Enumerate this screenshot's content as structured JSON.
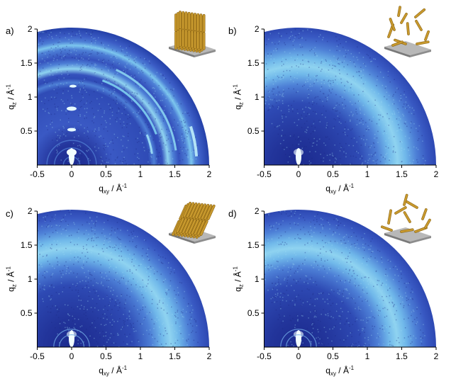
{
  "colors": {
    "background": "#ffffff",
    "map_outer": "#1b2a8e",
    "map_inner": "#3a59c4",
    "ring_mid": "#4d7fd6",
    "ring_bright": "#8fd3f0",
    "ring_peak": "#c9f0fb",
    "rod": "#c99a2e",
    "rod_dark": "#8a6414",
    "substrate": "#9a9a9a"
  },
  "chart_data": [
    {
      "type": "heatmap",
      "panel_label": "a)",
      "xlabel": {
        "base": "q",
        "sub": "xy",
        "mid": " / Å",
        "sup": "-1"
      },
      "ylabel": {
        "base": "q",
        "sub": "z",
        "mid": " / Å",
        "sup": "-1"
      },
      "xlim": [
        -0.5,
        2
      ],
      "ylim": [
        0,
        2
      ],
      "x_ticks": [
        "-0.5",
        "0",
        "0.5",
        "1",
        "1.5",
        "2"
      ],
      "y_ticks": [
        "0.5",
        "1",
        "1.5",
        "2"
      ],
      "inset": "vertical-rod-stack",
      "rings": [
        0.35,
        0.52,
        0.83,
        1.18,
        1.31,
        1.53,
        1.73,
        1.82
      ]
    },
    {
      "type": "heatmap",
      "panel_label": "b)",
      "xlabel": {
        "base": "q",
        "sub": "xy",
        "mid": " / Å",
        "sup": "-1"
      },
      "ylabel": {
        "base": "q",
        "sub": "z",
        "mid": " / Å",
        "sup": "-1"
      },
      "xlim": [
        -0.5,
        2
      ],
      "ylim": [
        0,
        2
      ],
      "x_ticks": [
        "-0.5",
        "0",
        "0.5",
        "1",
        "1.5",
        "2"
      ],
      "y_ticks": [
        "0.5",
        "1",
        "1.5",
        "2"
      ],
      "inset": "random-rods",
      "rings": [
        1.45
      ]
    },
    {
      "type": "heatmap",
      "panel_label": "c)",
      "xlabel": {
        "base": "q",
        "sub": "xy",
        "mid": " / Å",
        "sup": "-1"
      },
      "ylabel": {
        "base": "q",
        "sub": "z",
        "mid": " / Å",
        "sup": "-1"
      },
      "xlim": [
        -0.5,
        2
      ],
      "ylim": [
        0,
        2
      ],
      "x_ticks": [
        "-0.5",
        "0",
        "0.5",
        "1",
        "1.5",
        "2"
      ],
      "y_ticks": [
        "0.5",
        "1",
        "1.5",
        "2"
      ],
      "inset": "tilted-rod-stack",
      "rings": [
        1.45
      ]
    },
    {
      "type": "heatmap",
      "panel_label": "d)",
      "xlabel": {
        "base": "q",
        "sub": "xy",
        "mid": " / Å",
        "sup": "-1"
      },
      "ylabel": {
        "base": "q",
        "sub": "z",
        "mid": " / Å",
        "sup": "-1"
      },
      "xlim": [
        -0.5,
        2
      ],
      "ylim": [
        0,
        2
      ],
      "x_ticks": [
        "-0.5",
        "0",
        "0.5",
        "1",
        "1.5",
        "2"
      ],
      "y_ticks": [
        "0.5",
        "1",
        "1.5",
        "2"
      ],
      "inset": "random-rods-sparse",
      "rings": [
        1.45
      ]
    }
  ]
}
